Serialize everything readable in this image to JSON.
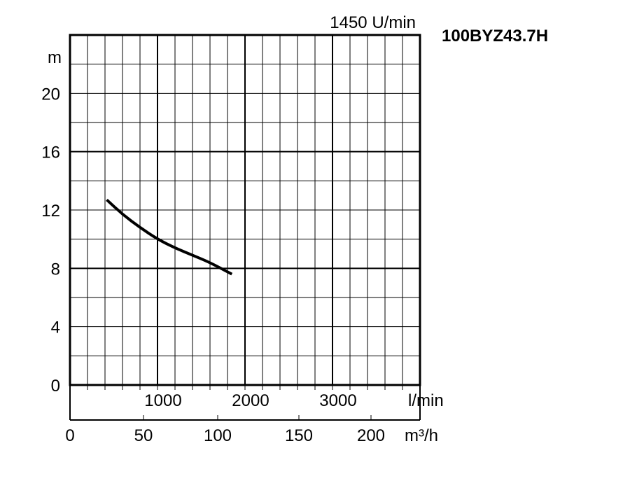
{
  "chart_data": {
    "type": "line",
    "title": "100BYZ43.7H",
    "speed_label": "1450 U/min",
    "ylabel": "m",
    "y_ticks": [
      "0",
      "4",
      "8",
      "12",
      "16",
      "20"
    ],
    "ylim": [
      0,
      24
    ],
    "xlabel_lmin": "l/min",
    "x_ticks_lmin": [
      "1000",
      "2000",
      "3000"
    ],
    "xlim_lmin": [
      0,
      4000
    ],
    "xlabel_m3h": "m³/h",
    "x_ticks_m3h": [
      "0",
      "50",
      "100",
      "150",
      "200"
    ],
    "series": [
      {
        "x": [
          420,
          600,
          800,
          1000,
          1200,
          1400,
          1600,
          1850
        ],
        "y": [
          12.7,
          11.7,
          10.8,
          10.0,
          9.4,
          8.9,
          8.4,
          7.6
        ]
      }
    ],
    "grid": true
  }
}
